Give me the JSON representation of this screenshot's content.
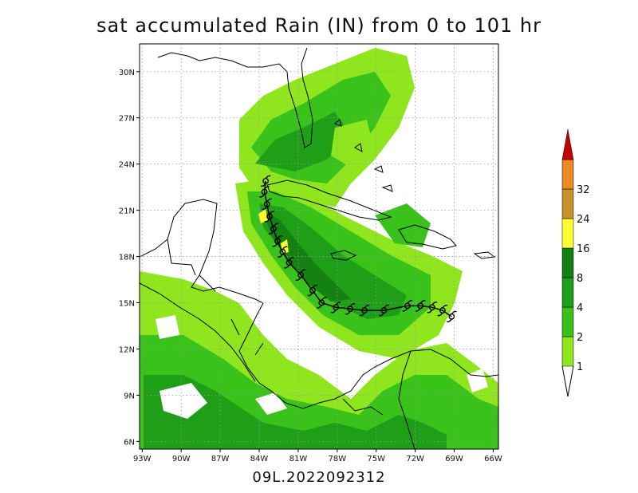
{
  "title": "sat accumulated Rain (IN) from 0 to 101 hr",
  "footer": "09L.2022092312",
  "map": {
    "lon_range": [
      -93.2,
      -65.6
    ],
    "lat_range": [
      5.5,
      31.8
    ],
    "lon_ticks": [
      "93W",
      "90W",
      "87W",
      "84W",
      "81W",
      "78W",
      "75W",
      "72W",
      "69W",
      "66W"
    ],
    "lat_ticks": [
      "6N",
      "9N",
      "12N",
      "15N",
      "18N",
      "21N",
      "24N",
      "27N",
      "30N"
    ],
    "grid": true
  },
  "colorbar": {
    "labels": [
      "1",
      "2",
      "4",
      "8",
      "16",
      "24",
      "32"
    ],
    "colors": [
      "#8fe61e",
      "#38c21a",
      "#1f9e18",
      "#138212",
      "#ffff33",
      "#c8912d",
      "#ee8a24",
      "#c40000"
    ]
  },
  "storm_track": {
    "symbol": "tropical-cyclone",
    "points": [
      [
        -69.2,
        14.1
      ],
      [
        -69.9,
        14.5
      ],
      [
        -70.7,
        14.7
      ],
      [
        -71.6,
        14.8
      ],
      [
        -72.6,
        14.8
      ],
      [
        -74.4,
        14.5
      ],
      [
        -75.9,
        14.5
      ],
      [
        -77.0,
        14.6
      ],
      [
        -78.1,
        14.7
      ],
      [
        -79.2,
        15.0
      ],
      [
        -79.9,
        15.8
      ],
      [
        -80.8,
        16.8
      ],
      [
        -81.7,
        17.6
      ],
      [
        -82.2,
        18.3
      ],
      [
        -82.6,
        19.0
      ],
      [
        -82.9,
        19.8
      ],
      [
        -83.2,
        20.6
      ],
      [
        -83.4,
        21.4
      ],
      [
        -83.6,
        22.2
      ],
      [
        -83.5,
        22.9
      ]
    ]
  }
}
